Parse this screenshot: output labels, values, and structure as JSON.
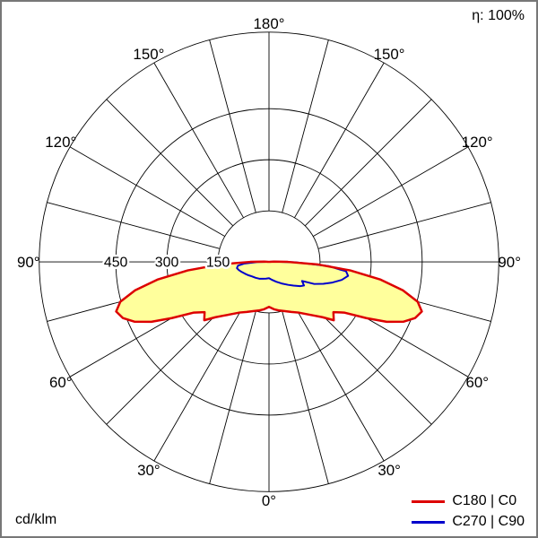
{
  "frame": {
    "efficiency_label": "η: 100%",
    "unit_label": "cd/klm"
  },
  "legend": [
    {
      "label": "C180 | C0",
      "color": "#dd0000"
    },
    {
      "label": "C270 | C90",
      "color": "#0000cc"
    }
  ],
  "chart_data": {
    "type": "polar-line",
    "unit": "cd/klm",
    "efficiency_percent": 100,
    "radial_ticks": [
      150,
      300,
      450
    ],
    "radial_max": 675,
    "grid_step_deg": 15,
    "angle_labels_deg": [
      0,
      30,
      60,
      90,
      120,
      150,
      180
    ],
    "series": [
      {
        "name": "C180 | C0",
        "color": "#dd0000",
        "fill": "#ffff9c",
        "right": {
          "angles": [
            0,
            6,
            12,
            18,
            24,
            30,
            36,
            40,
            44,
            48,
            52,
            56,
            60,
            63,
            66,
            69,
            72,
            75,
            78,
            81,
            84,
            87,
            90,
            93,
            96,
            100,
            120,
            150,
            180
          ],
          "values": [
            132,
            140,
            146,
            152,
            161,
            172,
            190,
            206,
            226,
            256,
            240,
            266,
            330,
            388,
            432,
            460,
            472,
            452,
            402,
            332,
            240,
            142,
            55,
            14,
            3,
            0,
            0,
            0,
            0
          ]
        },
        "left": {
          "angles": [
            0,
            6,
            12,
            18,
            24,
            30,
            36,
            40,
            44,
            48,
            52,
            56,
            60,
            63,
            66,
            69,
            72,
            75,
            78,
            81,
            84,
            87,
            90,
            93,
            96,
            100,
            120,
            150,
            180
          ],
          "values": [
            132,
            140,
            146,
            152,
            161,
            172,
            190,
            206,
            226,
            256,
            240,
            266,
            330,
            388,
            432,
            460,
            472,
            452,
            402,
            332,
            240,
            142,
            55,
            14,
            3,
            0,
            0,
            0,
            0
          ]
        }
      },
      {
        "name": "C270 | C90",
        "color": "#0000cc",
        "fill": null,
        "right": {
          "angles": [
            0,
            10,
            20,
            30,
            40,
            46,
            52,
            56,
            60,
            64,
            68,
            72,
            76,
            80,
            83,
            86,
            89,
            92,
            96,
            120,
            150,
            180
          ],
          "values": [
            48,
            54,
            62,
            73,
            88,
            100,
            116,
            124,
            112,
            148,
            172,
            196,
            220,
            236,
            228,
            175,
            80,
            18,
            0,
            0,
            0,
            0
          ]
        },
        "left": {
          "angles": [
            0,
            10,
            20,
            30,
            40,
            50,
            58,
            64,
            70,
            75,
            79,
            83,
            86,
            89,
            92,
            96,
            120,
            150,
            180
          ],
          "values": [
            48,
            50,
            53,
            57,
            61,
            66,
            73,
            79,
            86,
            92,
            96,
            92,
            74,
            35,
            6,
            0,
            0,
            0,
            0
          ]
        }
      }
    ]
  }
}
